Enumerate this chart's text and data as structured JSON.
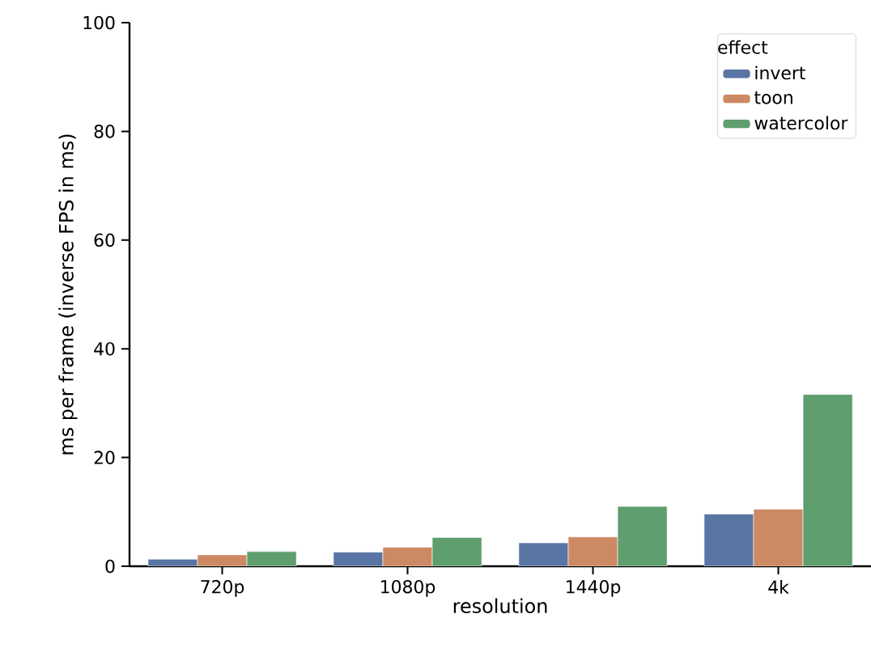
{
  "chart_data": {
    "type": "bar",
    "xlabel": "resolution",
    "ylabel": "ms per frame (inverse FPS in ms)",
    "legend_title": "effect",
    "categories": [
      "720p",
      "1080p",
      "1440p",
      "4k"
    ],
    "series": [
      {
        "name": "invert",
        "color": "#5975a4",
        "values": [
          1.3,
          2.6,
          4.3,
          9.6
        ]
      },
      {
        "name": "toon",
        "color": "#cc8963",
        "values": [
          2.1,
          3.5,
          5.4,
          10.5
        ]
      },
      {
        "name": "watercolor",
        "color": "#5f9e6e",
        "values": [
          2.7,
          5.3,
          11.0,
          31.6
        ]
      }
    ],
    "ylim": [
      0,
      100
    ],
    "yticks": [
      0,
      20,
      40,
      60,
      80,
      100
    ],
    "grid": false,
    "legend": "top right"
  }
}
